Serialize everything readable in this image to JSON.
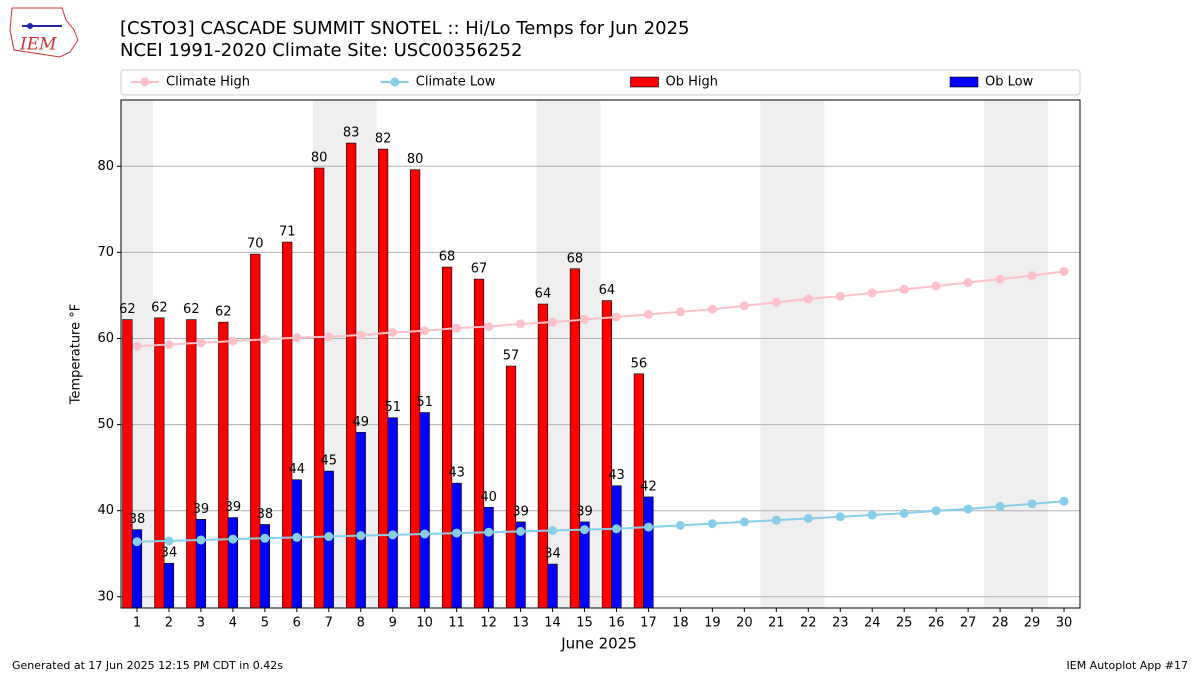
{
  "logo_text": "IEM",
  "footer_left": "Generated at 17 Jun 2025 12:15 PM CDT in 0.42s",
  "footer_right": "IEM Autoplot App #17",
  "chart_data": {
    "type": "bar",
    "title": "[CSTO3] CASCADE SUMMIT SNOTEL :: Hi/Lo Temps for Jun 2025",
    "subtitle": "NCEI 1991-2020 Climate Site: USC00356252",
    "x_label": "June 2025",
    "y_label": "Temperature °F",
    "x": [
      1,
      2,
      3,
      4,
      5,
      6,
      7,
      8,
      9,
      10,
      11,
      12,
      13,
      14,
      15,
      16,
      17,
      18,
      19,
      20,
      21,
      22,
      23,
      24,
      25,
      26,
      27,
      28,
      29,
      30
    ],
    "xlim": [
      0.5,
      30.5
    ],
    "xticks": [
      1,
      2,
      3,
      4,
      5,
      6,
      7,
      8,
      9,
      10,
      11,
      12,
      13,
      14,
      15,
      16,
      17,
      18,
      19,
      20,
      21,
      22,
      23,
      24,
      25,
      26,
      27,
      28,
      29,
      30
    ],
    "ylim": [
      28.7,
      87.7
    ],
    "yticks": [
      30,
      40,
      50,
      60,
      70,
      80
    ],
    "grid": true,
    "shaded_spans": [
      [
        0.5,
        1.5
      ],
      [
        6.5,
        8.5
      ],
      [
        13.5,
        15.5
      ],
      [
        20.5,
        22.5
      ],
      [
        27.5,
        29.5
      ]
    ],
    "shade_color": "#efefef",
    "series": [
      {
        "name": "Climate High",
        "kind": "line",
        "color": "#ffc0cb",
        "values": [
          59.1,
          59.3,
          59.5,
          59.7,
          59.9,
          60.1,
          60.2,
          60.4,
          60.7,
          60.9,
          61.2,
          61.4,
          61.7,
          61.9,
          62.2,
          62.5,
          62.8,
          63.1,
          63.4,
          63.8,
          64.2,
          64.6,
          64.9,
          65.3,
          65.7,
          66.1,
          66.5,
          66.9,
          67.3,
          67.8
        ]
      },
      {
        "name": "Climate Low",
        "kind": "line",
        "color": "#87ceeb",
        "values": [
          36.4,
          36.5,
          36.6,
          36.7,
          36.8,
          36.9,
          37.0,
          37.1,
          37.2,
          37.3,
          37.4,
          37.5,
          37.6,
          37.7,
          37.8,
          37.9,
          38.1,
          38.3,
          38.5,
          38.7,
          38.9,
          39.1,
          39.3,
          39.5,
          39.7,
          40.0,
          40.2,
          40.5,
          40.8,
          41.1
        ]
      },
      {
        "name": "Ob High",
        "kind": "bar",
        "offset": -0.3,
        "color": "#ff0000",
        "values": [
          62.2,
          62.4,
          62.2,
          61.9,
          69.8,
          71.2,
          79.8,
          82.7,
          82.0,
          79.6,
          68.3,
          66.9,
          56.8,
          64.0,
          68.1,
          64.4,
          55.9,
          null,
          null,
          null,
          null,
          null,
          null,
          null,
          null,
          null,
          null,
          null,
          null,
          null
        ],
        "value_labels": [
          "62",
          "62",
          "62",
          "62",
          "70",
          "71",
          "80",
          "83",
          "82",
          "80",
          "68",
          "67",
          "57",
          "64",
          "68",
          "64",
          "56",
          null,
          null,
          null,
          null,
          null,
          null,
          null,
          null,
          null,
          null,
          null,
          null,
          null
        ]
      },
      {
        "name": "Ob Low",
        "kind": "bar",
        "offset": 0,
        "color": "#0000ff",
        "values": [
          37.8,
          33.9,
          39.0,
          39.2,
          38.4,
          43.6,
          44.6,
          49.1,
          50.8,
          51.4,
          43.2,
          40.4,
          38.7,
          33.8,
          38.7,
          42.9,
          41.6,
          null,
          null,
          null,
          null,
          null,
          null,
          null,
          null,
          null,
          null,
          null,
          null,
          null
        ],
        "value_labels": [
          "38",
          "34",
          "39",
          "39",
          "38",
          "44",
          "45",
          "49",
          "51",
          "51",
          "43",
          "40",
          "39",
          "34",
          "39",
          "43",
          "42",
          null,
          null,
          null,
          null,
          null,
          null,
          null,
          null,
          null,
          null,
          null,
          null,
          null
        ]
      }
    ]
  }
}
